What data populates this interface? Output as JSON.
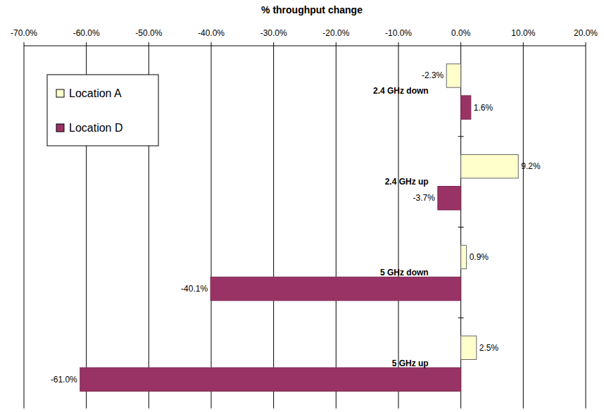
{
  "chart_data": {
    "type": "bar",
    "orientation": "horizontal",
    "xlabel": "% throughput change",
    "categories": [
      "2.4 GHz down",
      "2.4 GHz up",
      "5 GHz down",
      "5 GHz up"
    ],
    "series": [
      {
        "name": "Location A",
        "color": "#ffffcc",
        "values": [
          -2.3,
          9.2,
          0.9,
          2.5
        ],
        "value_labels": [
          "-2.3%",
          "9.2%",
          "0.9%",
          "2.5%"
        ]
      },
      {
        "name": "Location D",
        "color": "#993366",
        "values": [
          1.6,
          -3.7,
          -40.1,
          -61.0
        ],
        "value_labels": [
          "1.6%",
          "-3.7%",
          "-40.1%",
          "-61.0%"
        ]
      }
    ],
    "xlim": [
      -70,
      20
    ],
    "xticks": [
      {
        "value": -70,
        "label": "-70.0%"
      },
      {
        "value": -60,
        "label": "-60.0%"
      },
      {
        "value": -50,
        "label": "-50.0%"
      },
      {
        "value": -40,
        "label": "-40.0%"
      },
      {
        "value": -30,
        "label": "-30.0%"
      },
      {
        "value": -20,
        "label": "-20.0%"
      },
      {
        "value": -10,
        "label": "-10.0%"
      },
      {
        "value": 0,
        "label": "0.0%"
      },
      {
        "value": 10,
        "label": "10.0%"
      },
      {
        "value": 20,
        "label": "20.0%"
      }
    ],
    "grid": true,
    "legend": "upper left",
    "data_labels": true
  }
}
